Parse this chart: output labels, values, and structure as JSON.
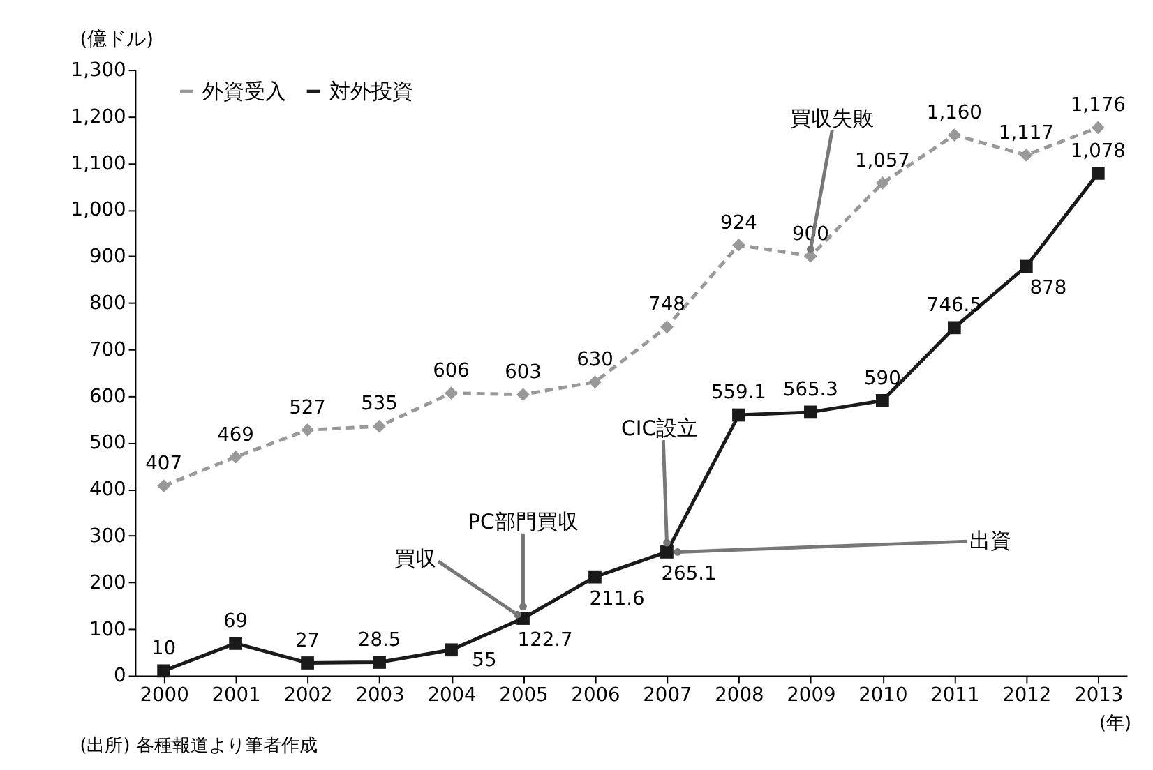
{
  "chart_data": {
    "type": "line",
    "categories": [
      "2000",
      "2001",
      "2002",
      "2003",
      "2004",
      "2005",
      "2006",
      "2007",
      "2008",
      "2009",
      "2010",
      "2011",
      "2012",
      "2013"
    ],
    "series": [
      {
        "name": "外資受入",
        "color": "#999999",
        "line_style": "dashed",
        "marker": "diamond",
        "values": [
          407,
          469,
          527,
          535,
          606,
          603,
          630,
          748,
          924,
          900,
          1057,
          1160,
          1117,
          1176
        ],
        "value_labels": [
          "407",
          "469",
          "527",
          "535",
          "606",
          "603",
          "630",
          "748",
          "924",
          "900",
          "1,057",
          "1,160",
          "1,117",
          "1,176"
        ]
      },
      {
        "name": "対外投資",
        "color": "#1a1a1a",
        "line_style": "solid",
        "marker": "square",
        "values": [
          10,
          69,
          27,
          28.5,
          55,
          122.7,
          211.6,
          265.1,
          559.1,
          565.3,
          590,
          746.5,
          878,
          1078
        ],
        "value_labels": [
          "10",
          "69",
          "27",
          "28.5",
          "55",
          "122.7",
          "211.6",
          "265.1",
          "559.1",
          "565.3",
          "590",
          "746.5",
          "878",
          "1,078"
        ]
      }
    ],
    "ylabel": "(億ドル)",
    "xlabel": "(年)",
    "ylim": [
      0,
      1300
    ],
    "yticks": [
      0,
      100,
      200,
      300,
      400,
      500,
      600,
      700,
      800,
      900,
      {
        "value": 1000,
        "label": "1,000"
      },
      {
        "value": 1100,
        "label": "1,100"
      },
      {
        "value": 1200,
        "label": "1,200"
      },
      {
        "value": 1300,
        "label": "1,300"
      }
    ],
    "grid": false,
    "legend": "top left",
    "annotations": [
      {
        "text": "買収失敗",
        "x": "2009",
        "y": 900
      },
      {
        "text": "CIC設立",
        "x": "2007",
        "y": 265.1
      },
      {
        "text": "PC部門買収",
        "x": "2005",
        "y": 122.7
      },
      {
        "text": "買収",
        "x": "2005",
        "y": 122.7
      },
      {
        "text": "出資",
        "x": "2007",
        "y": 265.1
      },
      "(出所) 各種報道より筆者作成"
    ]
  }
}
